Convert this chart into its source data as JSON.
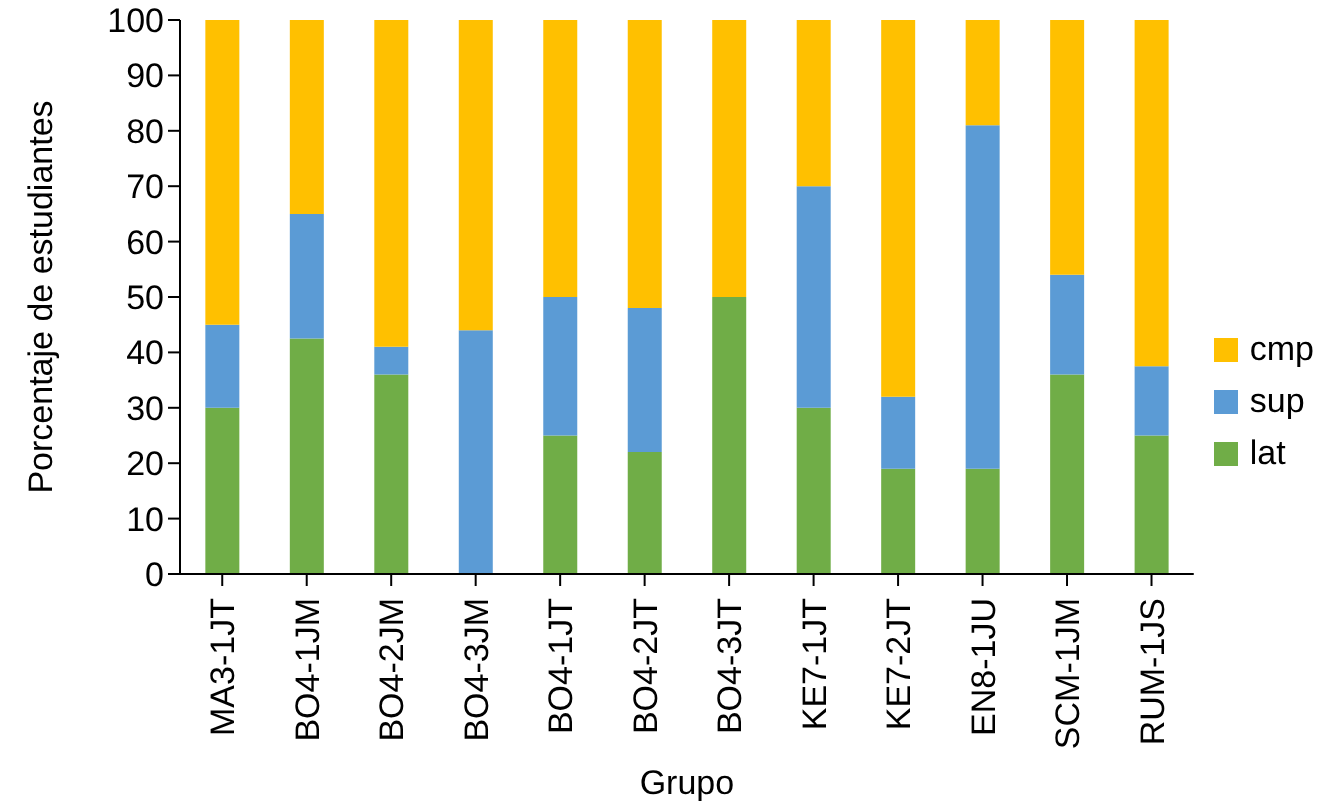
{
  "chart_data": {
    "type": "bar",
    "stacked": true,
    "xlabel": "Grupo",
    "ylabel": "Porcentaje de estudiantes",
    "categories": [
      "MA3-1JT",
      "BO4-1JM",
      "BO4-2JM",
      "BO4-3JM",
      "BO4-1JT",
      "BO4-2JT",
      "BO4-3JT",
      "KE7-1JT",
      "KE7-2JT",
      "EN8-1JU",
      "SCM-1JM",
      "RUM-1JS"
    ],
    "series": [
      {
        "name": "lat",
        "color": "#70ad47",
        "values": [
          30,
          42.5,
          36,
          0,
          25,
          22,
          50,
          30,
          19,
          19,
          36,
          25
        ]
      },
      {
        "name": "sup",
        "color": "#5b9bd5",
        "values": [
          15,
          22.5,
          5,
          44,
          25,
          26,
          0,
          40,
          13,
          62,
          18,
          12.5
        ]
      },
      {
        "name": "cmp",
        "color": "#ffc000",
        "values": [
          55,
          35,
          59,
          56,
          50,
          52,
          50,
          30,
          68,
          19,
          46,
          62.5
        ]
      }
    ],
    "ylim": [
      0,
      100
    ],
    "yticks": [
      0,
      10,
      20,
      30,
      40,
      50,
      60,
      70,
      80,
      90,
      100
    ],
    "grid": false,
    "legend": "right"
  }
}
